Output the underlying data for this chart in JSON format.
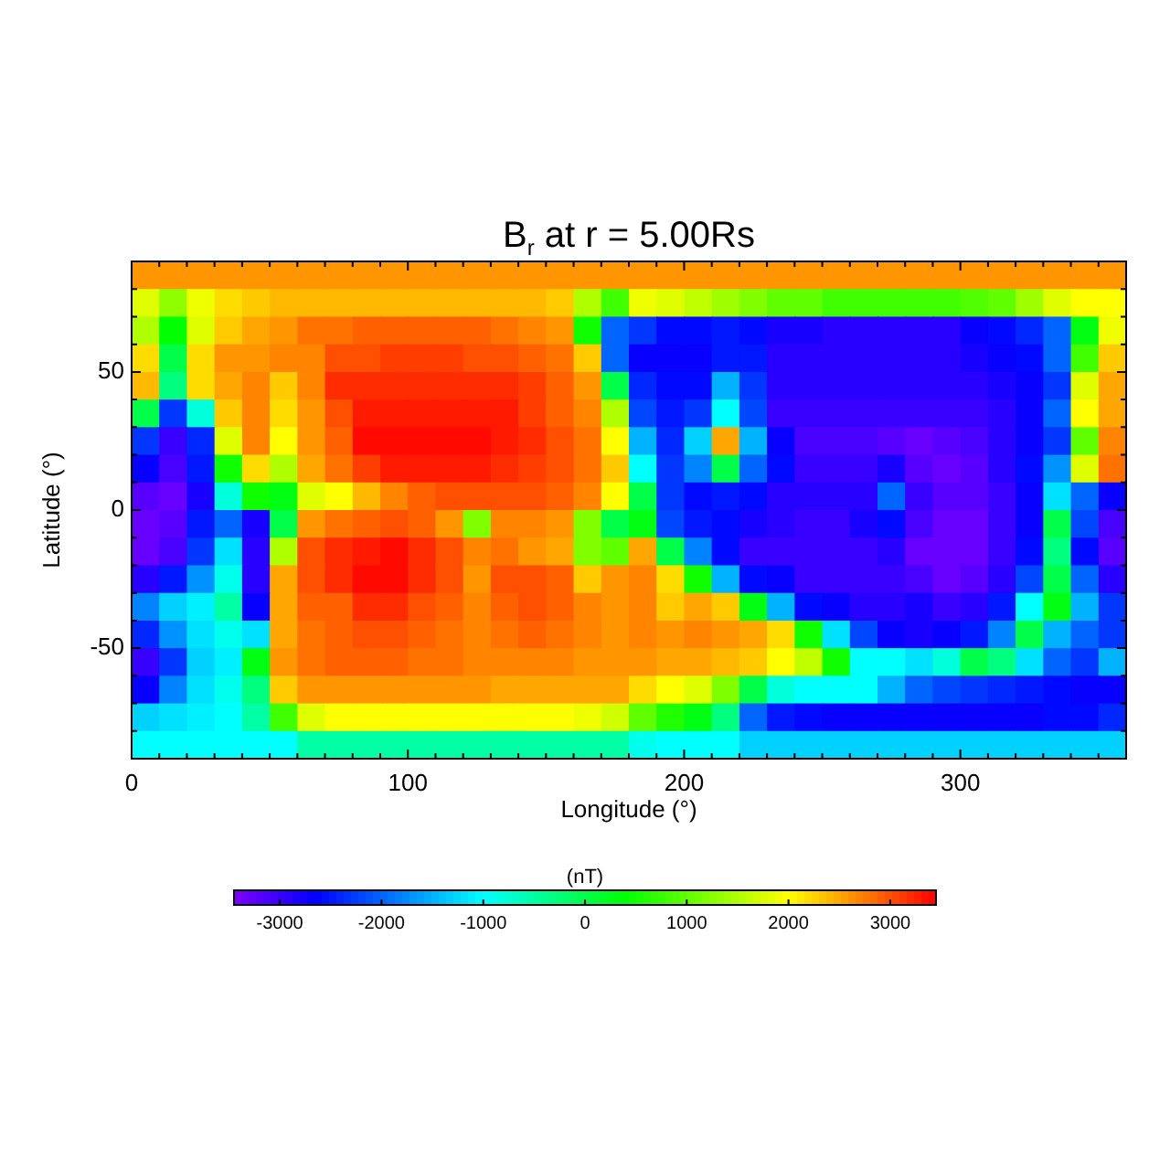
{
  "chart_data": {
    "type": "heatmap",
    "title": "B$_{r}$ at r = 5.00Rs",
    "xlabel": "Longitude (°)",
    "ylabel": "Latitude (°)",
    "clabel": "(nT)",
    "xlim": [
      0,
      360
    ],
    "ylim": [
      -90,
      90
    ],
    "xticks": [
      0,
      {
        "value": 10,
        "label": null
      },
      {
        "value": 20,
        "label": null
      },
      {
        "value": 30,
        "label": null
      },
      {
        "value": 40,
        "label": null
      },
      {
        "value": 50,
        "label": null
      },
      {
        "value": 60,
        "label": null
      },
      {
        "value": 70,
        "label": null
      },
      {
        "value": 80,
        "label": null
      },
      {
        "value": 90,
        "label": null
      },
      100,
      {
        "value": 110,
        "label": null
      },
      {
        "value": 120,
        "label": null
      },
      {
        "value": 130,
        "label": null
      },
      {
        "value": 140,
        "label": null
      },
      {
        "value": 150,
        "label": null
      },
      {
        "value": 160,
        "label": null
      },
      {
        "value": 170,
        "label": null
      },
      {
        "value": 180,
        "label": null
      },
      {
        "value": 190,
        "label": null
      },
      200,
      {
        "value": 210,
        "label": null
      },
      {
        "value": 220,
        "label": null
      },
      {
        "value": 230,
        "label": null
      },
      {
        "value": 240,
        "label": null
      },
      {
        "value": 250,
        "label": null
      },
      {
        "value": 260,
        "label": null
      },
      {
        "value": 270,
        "label": null
      },
      {
        "value": 280,
        "label": null
      },
      {
        "value": 290,
        "label": null
      },
      300,
      {
        "value": 310,
        "label": null
      },
      {
        "value": 320,
        "label": null
      },
      {
        "value": 330,
        "label": null
      },
      {
        "value": 340,
        "label": null
      },
      {
        "value": 350,
        "label": null
      }
    ],
    "yticks": [
      {
        "value": -80,
        "label": null
      },
      {
        "value": -70,
        "label": null
      },
      {
        "value": -60,
        "label": null
      },
      -50,
      {
        "value": -40,
        "label": null
      },
      {
        "value": -30,
        "label": null
      },
      {
        "value": -20,
        "label": null
      },
      {
        "value": -10,
        "label": null
      },
      0,
      {
        "value": 10,
        "label": null
      },
      {
        "value": 20,
        "label": null
      },
      {
        "value": 30,
        "label": null
      },
      {
        "value": 40,
        "label": null
      },
      50,
      {
        "value": 60,
        "label": null
      },
      {
        "value": 70,
        "label": null
      },
      {
        "value": 80,
        "label": null
      }
    ],
    "clim": [
      -3450,
      3450
    ],
    "cticks": [
      -3000,
      -2000,
      -1000,
      0,
      1000,
      2000,
      3000
    ],
    "cells": [
      [
        2600,
        2600,
        2600,
        2600,
        2600,
        2600,
        2600,
        2600,
        2600,
        2600,
        2600,
        2600,
        2600,
        2600,
        2600,
        2600,
        2600,
        2600,
        2600,
        2600,
        2600,
        2600,
        2600,
        2600,
        2600,
        2600,
        2600,
        2600,
        2600,
        2600,
        2600,
        2600,
        2600,
        2600,
        2600,
        2600
      ],
      [
        1800,
        1300,
        1900,
        2200,
        2300,
        2400,
        2400,
        2400,
        2400,
        2400,
        2400,
        2400,
        2400,
        2400,
        2400,
        2300,
        1500,
        800,
        1900,
        1800,
        1600,
        1400,
        1200,
        1000,
        1000,
        800,
        800,
        800,
        800,
        800,
        900,
        1000,
        1400,
        1800,
        2000,
        2000
      ],
      [
        1500,
        400,
        1800,
        2300,
        2500,
        2600,
        2800,
        2800,
        2900,
        2900,
        2900,
        2900,
        2900,
        2800,
        2700,
        2600,
        500,
        -2000,
        -2300,
        -2600,
        -2600,
        -2500,
        -2600,
        -2800,
        -2800,
        -2900,
        -2900,
        -2900,
        -2900,
        -2900,
        -2700,
        -2600,
        -2400,
        -2000,
        300,
        1900
      ],
      [
        2200,
        0,
        2200,
        2600,
        2600,
        2700,
        2700,
        3000,
        3000,
        3100,
        3100,
        3100,
        3000,
        3000,
        2900,
        2800,
        2300,
        -2000,
        -2700,
        -2700,
        -2700,
        -2500,
        -2500,
        -2900,
        -2900,
        -2900,
        -2900,
        -2900,
        -2900,
        -2900,
        -2800,
        -2700,
        -2600,
        -2000,
        800,
        2300
      ],
      [
        2400,
        -300,
        2200,
        2500,
        2700,
        2300,
        2700,
        3200,
        3200,
        3200,
        3200,
        3200,
        3200,
        3200,
        3100,
        2900,
        2600,
        0,
        -2400,
        -2600,
        -2600,
        -1500,
        -2300,
        -2900,
        -2900,
        -2900,
        -2900,
        -2900,
        -2900,
        -2900,
        -2900,
        -2800,
        -2700,
        -2300,
        1800,
        2500
      ],
      [
        0,
        -2300,
        -800,
        2300,
        2700,
        2200,
        2600,
        3000,
        3300,
        3300,
        3300,
        3300,
        3300,
        3300,
        3100,
        2900,
        2700,
        1500,
        -2200,
        -2500,
        -2300,
        -1000,
        -2200,
        -3000,
        -3000,
        -3000,
        -3000,
        -3000,
        -3000,
        -3000,
        -3000,
        -2900,
        -2700,
        -2000,
        2000,
        2500
      ],
      [
        -2300,
        -3000,
        -2400,
        1800,
        2700,
        2000,
        2600,
        2900,
        3400,
        3400,
        3400,
        3400,
        3400,
        3300,
        3200,
        3000,
        2800,
        2000,
        -1500,
        -2400,
        -1300,
        2500,
        -1500,
        -2700,
        -3100,
        -3100,
        -3100,
        -3200,
        -3300,
        -3200,
        -3100,
        -2900,
        -2700,
        -2300,
        1000,
        2700
      ],
      [
        -2700,
        -3100,
        -2500,
        500,
        2200,
        1500,
        2500,
        2800,
        3100,
        3300,
        3300,
        3300,
        3300,
        3200,
        3100,
        3000,
        2800,
        2300,
        -1000,
        -2300,
        -1800,
        0,
        -2000,
        -2600,
        -3000,
        -3000,
        -3000,
        -2800,
        -3200,
        -3300,
        -3200,
        -2900,
        -2600,
        -1700,
        1800,
        2800
      ],
      [
        -3200,
        -3300,
        -2800,
        -800,
        500,
        300,
        1800,
        2000,
        2400,
        2700,
        2900,
        3000,
        3000,
        3000,
        3000,
        2900,
        2700,
        2000,
        0,
        -2300,
        -2600,
        -2500,
        -2600,
        -2900,
        -2900,
        -2900,
        -2900,
        -2000,
        -3000,
        -3200,
        -3200,
        -3000,
        -2700,
        -1200,
        -2000,
        -2700
      ],
      [
        -3300,
        -3200,
        -2500,
        -2000,
        -2800,
        0,
        2600,
        2800,
        2900,
        3000,
        2900,
        2600,
        1200,
        2700,
        2700,
        2600,
        1200,
        0,
        300,
        -2200,
        -2500,
        -2600,
        -2800,
        -2900,
        -3000,
        -3000,
        -2800,
        -2600,
        -3100,
        -3300,
        -3300,
        -3000,
        -2700,
        0,
        -2200,
        -3100
      ],
      [
        -3300,
        -3100,
        -2300,
        -1200,
        -2900,
        1500,
        3000,
        3200,
        3300,
        3400,
        3200,
        3000,
        2700,
        2800,
        2600,
        2500,
        1200,
        1000,
        2500,
        0,
        -1800,
        -2600,
        -3000,
        -3000,
        -3000,
        -3000,
        -3000,
        -2900,
        -3300,
        -3300,
        -3300,
        -3000,
        -2600,
        -300,
        -2600,
        -3200
      ],
      [
        -2900,
        -2500,
        -1700,
        -900,
        -2900,
        2500,
        3000,
        3200,
        3400,
        3400,
        3200,
        3000,
        2600,
        3000,
        3000,
        2900,
        2300,
        2600,
        2700,
        2200,
        500,
        -1500,
        -2600,
        -2700,
        -3000,
        -3000,
        -3000,
        -3000,
        -3100,
        -3300,
        -3200,
        -2900,
        -2200,
        0,
        -2000,
        -2900
      ],
      [
        -1800,
        -1300,
        -1100,
        -500,
        -2700,
        2500,
        2900,
        2900,
        3200,
        3200,
        3000,
        2900,
        2700,
        2900,
        3000,
        2900,
        2700,
        2600,
        2700,
        2300,
        2500,
        2300,
        300,
        -1500,
        -2600,
        -2700,
        -2900,
        -2900,
        -2800,
        -3000,
        -2900,
        -2500,
        -1000,
        300,
        -1500,
        -2300
      ],
      [
        -2400,
        -1700,
        -1200,
        -900,
        -1200,
        2500,
        2800,
        2900,
        3000,
        3000,
        2900,
        2800,
        2700,
        2800,
        2900,
        2800,
        2700,
        2600,
        2700,
        2600,
        2700,
        2600,
        2500,
        2200,
        500,
        -1200,
        -2200,
        -2700,
        -2800,
        -2700,
        -2500,
        -1800,
        0,
        -1500,
        -2000,
        -2300
      ],
      [
        -3000,
        -2300,
        -1300,
        -1100,
        300,
        2600,
        2800,
        2900,
        2900,
        2900,
        2800,
        2800,
        2700,
        2700,
        2700,
        2700,
        2600,
        2600,
        2600,
        2500,
        2500,
        2400,
        2300,
        2000,
        1600,
        500,
        -1000,
        -1000,
        -1200,
        -800,
        0,
        -300,
        -1200,
        -2000,
        -2300,
        -1500
      ],
      [
        -2700,
        -1800,
        -1200,
        -900,
        -300,
        2300,
        2600,
        2600,
        2600,
        2600,
        2600,
        2600,
        2600,
        2500,
        2500,
        2500,
        2500,
        2500,
        2200,
        2000,
        1800,
        1200,
        0,
        -800,
        -1000,
        -1000,
        -1000,
        -1500,
        -2000,
        -2200,
        -2300,
        -2400,
        -2500,
        -2600,
        -2700,
        -2700
      ],
      [
        -1300,
        -1200,
        -1100,
        -1000,
        -500,
        800,
        1800,
        2000,
        2000,
        2000,
        2000,
        2000,
        2000,
        2000,
        2000,
        2000,
        1900,
        1700,
        1000,
        600,
        300,
        -300,
        -2000,
        -2500,
        -2600,
        -2700,
        -2700,
        -2700,
        -2700,
        -2700,
        -2700,
        -2700,
        -2700,
        -2600,
        -2600,
        -2400
      ],
      [
        -1000,
        -1000,
        -1000,
        -1000,
        -1000,
        -1000,
        -500,
        -500,
        -500,
        -500,
        -500,
        -500,
        -500,
        -500,
        -500,
        -500,
        -500,
        -500,
        -900,
        -1000,
        -1000,
        -1000,
        -1300,
        -1300,
        -1300,
        -1300,
        -1300,
        -1300,
        -1300,
        -1300,
        -1300,
        -1300,
        -1300,
        -1300,
        -1300,
        -1300
      ]
    ]
  }
}
